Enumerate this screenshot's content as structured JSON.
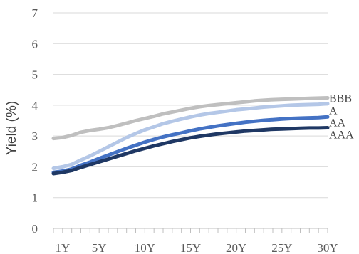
{
  "chart_data": {
    "type": "line",
    "ylabel": "Yield (%)",
    "xlabel": "",
    "ylim": [
      0,
      7
    ],
    "yticks": [
      0,
      1,
      2,
      3,
      4,
      5,
      6,
      7
    ],
    "xlim": [
      0,
      30
    ],
    "xtick_labels": [
      {
        "x": 1,
        "label": "1Y"
      },
      {
        "x": 5,
        "label": "5Y"
      },
      {
        "x": 10,
        "label": "10Y"
      },
      {
        "x": 15,
        "label": "15Y"
      },
      {
        "x": 20,
        "label": "20Y"
      },
      {
        "x": 25,
        "label": "25Y"
      },
      {
        "x": 30,
        "label": "30Y"
      }
    ],
    "grid": true,
    "x": [
      0,
      1,
      2,
      3,
      4,
      5,
      6,
      7,
      8,
      9,
      10,
      11,
      12,
      13,
      14,
      15,
      16,
      17,
      18,
      19,
      20,
      21,
      22,
      23,
      24,
      25,
      26,
      27,
      28,
      29,
      30
    ],
    "series": [
      {
        "name": "BBB",
        "color": "#bfbfbf",
        "values": [
          2.92,
          2.95,
          3.02,
          3.12,
          3.18,
          3.22,
          3.27,
          3.34,
          3.42,
          3.5,
          3.57,
          3.64,
          3.72,
          3.78,
          3.84,
          3.9,
          3.95,
          3.99,
          4.02,
          4.05,
          4.08,
          4.11,
          4.14,
          4.16,
          4.18,
          4.19,
          4.2,
          4.21,
          4.22,
          4.23,
          4.24
        ]
      },
      {
        "name": "A",
        "color": "#b4c7e7",
        "values": [
          1.95,
          2.0,
          2.08,
          2.22,
          2.35,
          2.5,
          2.65,
          2.8,
          2.95,
          3.08,
          3.2,
          3.3,
          3.4,
          3.48,
          3.55,
          3.62,
          3.68,
          3.73,
          3.77,
          3.81,
          3.85,
          3.88,
          3.91,
          3.94,
          3.96,
          3.98,
          4.0,
          4.01,
          4.02,
          4.03,
          4.05
        ]
      },
      {
        "name": "AA",
        "color": "#4472c4",
        "values": [
          1.82,
          1.86,
          1.93,
          2.05,
          2.15,
          2.27,
          2.38,
          2.49,
          2.6,
          2.7,
          2.8,
          2.89,
          2.97,
          3.04,
          3.1,
          3.17,
          3.23,
          3.28,
          3.33,
          3.37,
          3.41,
          3.45,
          3.48,
          3.51,
          3.53,
          3.55,
          3.57,
          3.58,
          3.59,
          3.6,
          3.62
        ]
      },
      {
        "name": "AAA",
        "color": "#1f3864",
        "values": [
          1.78,
          1.82,
          1.88,
          1.98,
          2.07,
          2.16,
          2.25,
          2.34,
          2.43,
          2.52,
          2.6,
          2.68,
          2.75,
          2.82,
          2.88,
          2.94,
          2.99,
          3.03,
          3.07,
          3.1,
          3.13,
          3.16,
          3.18,
          3.2,
          3.22,
          3.23,
          3.24,
          3.25,
          3.26,
          3.26,
          3.27
        ]
      }
    ]
  }
}
